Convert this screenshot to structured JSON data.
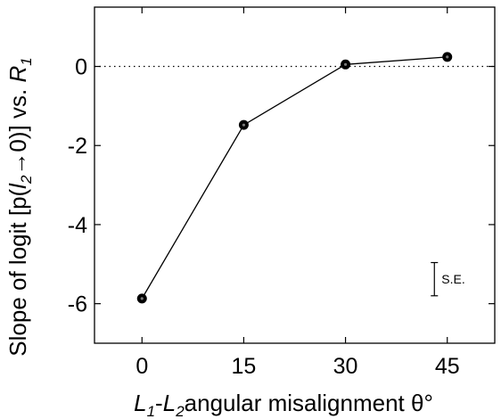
{
  "chart_data": {
    "type": "line",
    "x": [
      0,
      15,
      30,
      45
    ],
    "series": [
      {
        "values": [
          -5.87,
          -1.48,
          0.05,
          0.24
        ]
      }
    ],
    "xlim": [
      -7,
      52
    ],
    "ylim": [
      -7,
      1.5
    ],
    "xticks": [
      "0",
      "15",
      "30",
      "45"
    ],
    "yticks": [
      "0",
      "-2",
      "-4",
      "-6"
    ],
    "xlabel": {
      "first_var": "L",
      "first_sub": "1",
      "dash": "-",
      "second_var": "L",
      "second_sub": "2",
      "rest": "angular misalignment θ°"
    },
    "ylabel": {
      "prefix": "Slope of logit [p(",
      "var": "l",
      "sub": "2",
      "arrow": "→0)] vs. ",
      "r_var": "R",
      "r_sub": "1"
    },
    "reference_line": {
      "y": 0,
      "style": "dotted"
    },
    "error_bar": {
      "label": "S.E.",
      "x": 43.1,
      "y_center": -5.38,
      "half_height": 0.42
    },
    "grid": false,
    "legend": "none",
    "colors": {
      "line": "#000000",
      "marker": "#000000",
      "marker_center": "#7a7a7a"
    }
  }
}
